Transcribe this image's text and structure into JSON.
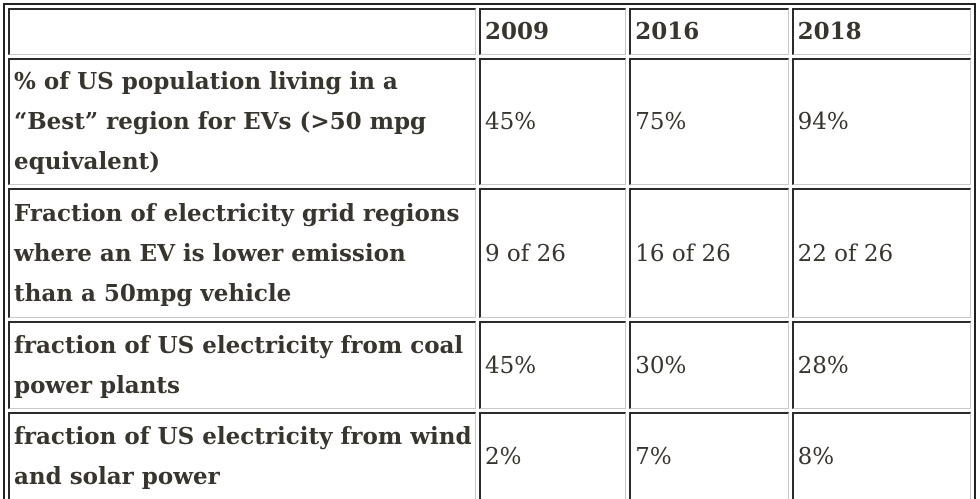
{
  "colors": {
    "text": "#38352f",
    "outer_border": "#222222",
    "cell_border_dark": "#2b2b2b",
    "cell_border_light": "#c9c9c9",
    "background": "#ffffff"
  },
  "chart_data": {
    "type": "table",
    "title": "",
    "columns": [
      "",
      "2009",
      "2016",
      "2018"
    ],
    "rows": [
      {
        "label": "% of US population living in a “Best” region for EVs (>50 mpg equivalent)",
        "values": [
          "45%",
          "75%",
          "94%"
        ]
      },
      {
        "label": "Fraction of electricity grid regions where an EV is lower emission than a 50mpg vehicle",
        "values": [
          "9 of 26",
          "16 of 26",
          "22 of 26"
        ]
      },
      {
        "label": "fraction of US electricity from coal power plants",
        "values": [
          "45%",
          "30%",
          "28%"
        ]
      },
      {
        "label": "fraction of US electricity from wind and solar power",
        "values": [
          "2%",
          "7%",
          "8%"
        ]
      }
    ]
  }
}
